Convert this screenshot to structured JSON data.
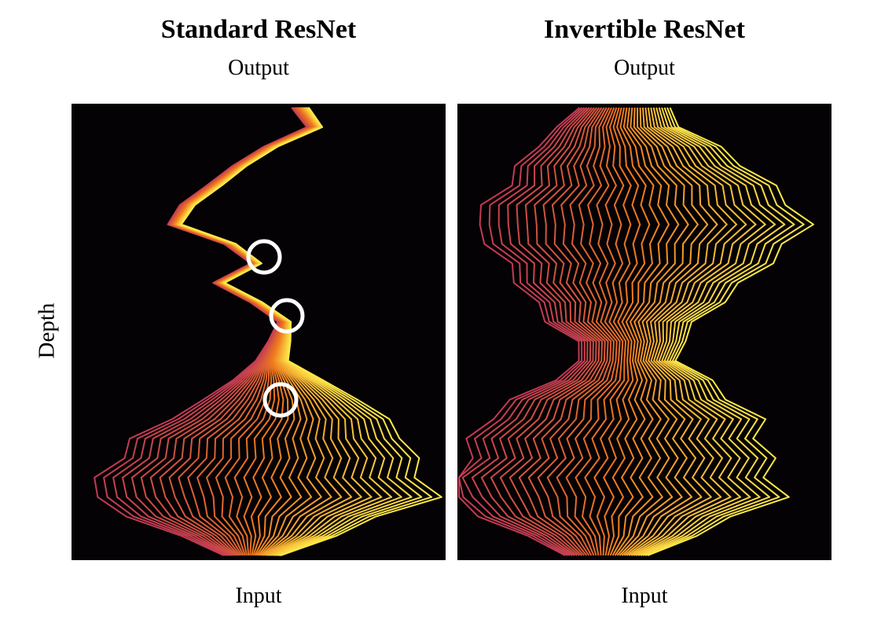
{
  "panels": [
    {
      "id": "standard",
      "title": "Standard ResNet",
      "top_label": "Output",
      "bottom_label": "Input",
      "highlight_circles": 3
    },
    {
      "id": "invertible",
      "title": "Invertible ResNet",
      "top_label": "Output",
      "bottom_label": "Input",
      "highlight_circles": 0
    }
  ],
  "y_label": "Depth",
  "colors": {
    "background": "#040204",
    "trajectory_start": "#c23a55",
    "trajectory_mid": "#ef7a1e",
    "trajectory_end": "#fce84a",
    "circle": "#ffffff"
  },
  "trajectory_count": 36,
  "depth_layers": 23
}
